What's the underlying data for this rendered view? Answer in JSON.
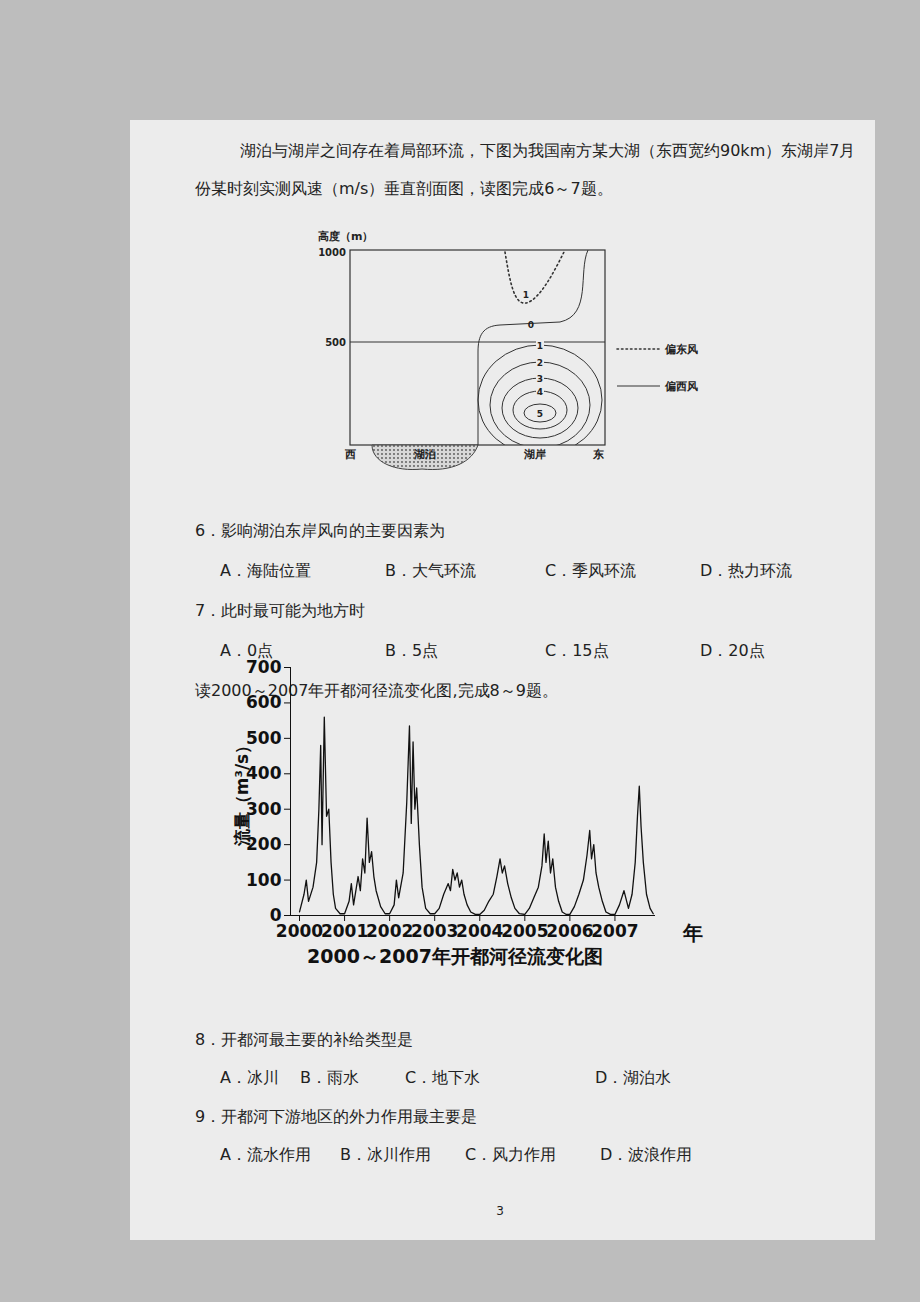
{
  "intro_6_7": [
    "湖泊与湖岸之间存在着局部环流，下图为我国南方某大湖（东西宽约90km）东湖岸7月",
    "份某时刻实测风速（m/s）垂直剖面图，读图完成6～7题。"
  ],
  "diagram": {
    "y_axis_label": "高度（m）",
    "y_ticks": [
      1000,
      500
    ],
    "west": "西",
    "east": "东",
    "lake": "湖泊",
    "shore": "湖岸",
    "easterly_contours": [
      1
    ],
    "westerly_contours": [
      0,
      1,
      2,
      3,
      4,
      5
    ],
    "legend": [
      {
        "label": "偏东风",
        "line_style": "dotted"
      },
      {
        "label": "偏西风",
        "line_style": "solid"
      }
    ]
  },
  "questions_6_7": [
    {
      "text": "6．影响湖泊东岸风向的主要因素为",
      "options": [
        "A．海陆位置",
        "B．大气环流",
        "C．季风环流",
        "D．热力环流"
      ]
    },
    {
      "text": "7．此时最可能为地方时",
      "options": [
        "A．0点",
        "B．5点",
        "C．15点",
        "D．20点"
      ]
    }
  ],
  "intro_8_9": "读2000～2007年开都河径流变化图,完成8～9题。",
  "chart_data": {
    "type": "line",
    "title": "2000～2007年开都河径流变化图",
    "x_label": "年",
    "y_label": "流量（m³/s）",
    "color": "#111111",
    "x": [
      2000.0,
      2000.1,
      2000.15,
      2000.2,
      2000.3,
      2000.38,
      2000.43,
      2000.47,
      2000.5,
      2000.55,
      2000.6,
      2000.65,
      2000.7,
      2000.75,
      2000.8,
      2000.9,
      2001.0,
      2001.1,
      2001.15,
      2001.2,
      2001.3,
      2001.35,
      2001.4,
      2001.45,
      2001.5,
      2001.55,
      2001.6,
      2001.65,
      2001.7,
      2001.8,
      2001.9,
      2002.0,
      2002.1,
      2002.15,
      2002.2,
      2002.3,
      2002.38,
      2002.44,
      2002.48,
      2002.52,
      2002.56,
      2002.6,
      2002.66,
      2002.72,
      2002.8,
      2002.9,
      2003.0,
      2003.1,
      2003.2,
      2003.3,
      2003.35,
      2003.4,
      2003.45,
      2003.5,
      2003.55,
      2003.6,
      2003.65,
      2003.72,
      2003.8,
      2003.9,
      2004.0,
      2004.1,
      2004.2,
      2004.3,
      2004.38,
      2004.45,
      2004.5,
      2004.55,
      2004.62,
      2004.7,
      2004.78,
      2004.88,
      2005.0,
      2005.1,
      2005.2,
      2005.3,
      2005.38,
      2005.43,
      2005.47,
      2005.52,
      2005.57,
      2005.62,
      2005.68,
      2005.75,
      2005.83,
      2005.92,
      2006.0,
      2006.1,
      2006.2,
      2006.3,
      2006.38,
      2006.44,
      2006.48,
      2006.53,
      2006.58,
      2006.64,
      2006.72,
      2006.8,
      2006.9,
      2007.0,
      2007.1,
      2007.2,
      2007.3,
      2007.38,
      2007.45,
      2007.5,
      2007.54,
      2007.58,
      2007.63,
      2007.7,
      2007.78,
      2007.85
    ],
    "values": [
      10,
      60,
      100,
      40,
      80,
      150,
      300,
      480,
      200,
      560,
      280,
      300,
      150,
      60,
      20,
      5,
      5,
      40,
      90,
      30,
      110,
      70,
      160,
      120,
      275,
      150,
      180,
      110,
      70,
      25,
      5,
      5,
      30,
      100,
      50,
      120,
      320,
      535,
      260,
      490,
      300,
      360,
      200,
      80,
      20,
      5,
      5,
      20,
      60,
      90,
      70,
      130,
      100,
      120,
      80,
      100,
      60,
      30,
      10,
      3,
      3,
      15,
      40,
      60,
      110,
      160,
      120,
      140,
      90,
      50,
      20,
      5,
      3,
      20,
      50,
      80,
      140,
      230,
      150,
      210,
      120,
      160,
      80,
      40,
      10,
      3,
      3,
      25,
      60,
      100,
      170,
      240,
      160,
      200,
      120,
      80,
      40,
      10,
      3,
      3,
      30,
      70,
      20,
      60,
      150,
      280,
      365,
      250,
      150,
      60,
      20,
      5
    ],
    "xlim": [
      1999.8,
      2007.9
    ],
    "xticks": [
      2000,
      2001,
      2002,
      2003,
      2004,
      2005,
      2006,
      2007
    ],
    "ylim": [
      0,
      700
    ],
    "yticks": [
      0,
      100,
      200,
      300,
      400,
      500,
      600,
      700
    ]
  },
  "questions_8_9": [
    {
      "text": "8．开都河最主要的补给类型是",
      "options": [
        "A．冰川",
        "B．雨水",
        "C．地下水",
        "D．湖泊水"
      ]
    },
    {
      "text": "9．开都河下游地区的外力作用最主要是",
      "options": [
        "A．流水作用",
        "B．冰川作用",
        "C．风力作用",
        "D．波浪作用"
      ]
    }
  ],
  "page_number": "3"
}
